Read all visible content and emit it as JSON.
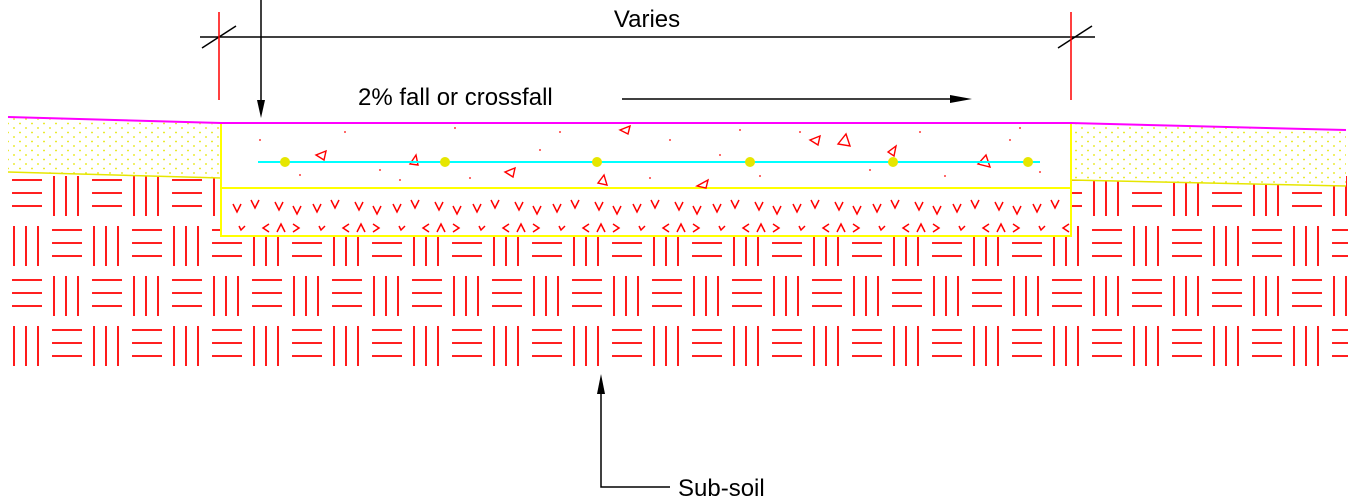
{
  "labels": {
    "dimension": "Varies",
    "slope": "2% fall or crossfall",
    "subsoil": "Sub-soil"
  },
  "colors": {
    "hatch": "#ff0000",
    "surface": "#ff00ff",
    "slab_outline": "#ffff00",
    "reinforcement": "#00ffff",
    "bar_dots": "#e6e600",
    "annotation": "#000000"
  }
}
